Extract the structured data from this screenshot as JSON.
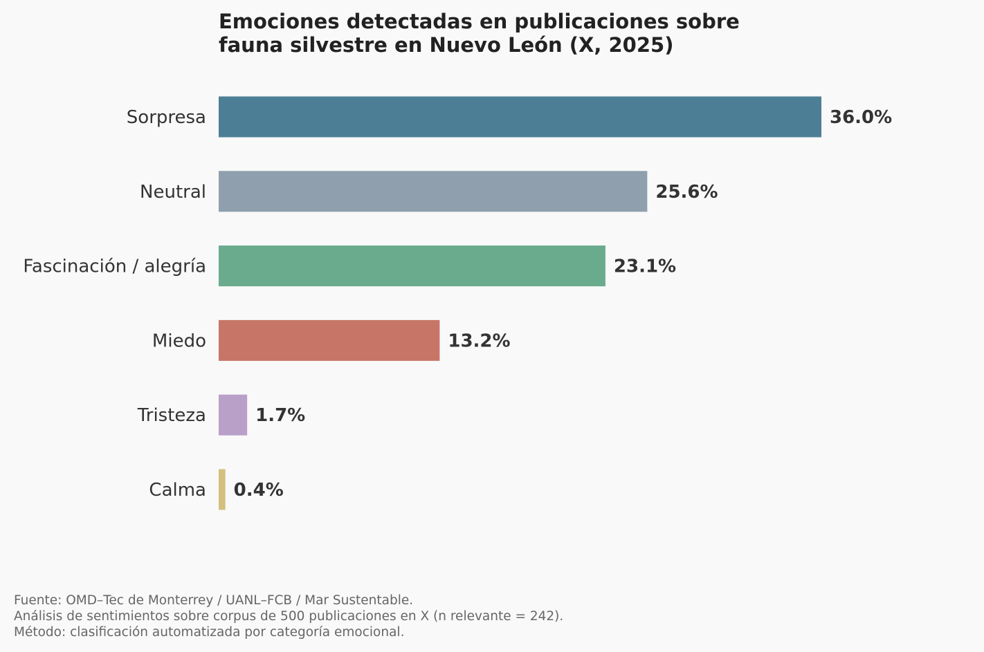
{
  "chart_data": {
    "type": "bar",
    "orientation": "horizontal",
    "title": "Emociones detectadas en publicaciones sobre\nfauna silvestre en Nuevo León (X, 2025)",
    "xlabel": "",
    "ylabel": "",
    "categories": [
      "Sorpresa",
      "Neutral",
      "Fascinación / alegría",
      "Miedo",
      "Tristeza",
      "Calma"
    ],
    "values": [
      36.0,
      25.6,
      23.1,
      13.2,
      1.7,
      0.4
    ],
    "value_labels": [
      "36.0%",
      "25.6%",
      "23.1%",
      "13.2%",
      "1.7%",
      "0.4%"
    ],
    "colors": [
      "#4c7f96",
      "#8f9fae",
      "#6aab8e",
      "#c67566",
      "#b9a0c9",
      "#d4c07e"
    ],
    "xlim": [
      0,
      40
    ],
    "grid": false,
    "legend": "none"
  },
  "footnote": {
    "lines": [
      "Fuente: OMD–Tec de Monterrey / UANL–FCB / Mar Sustentable.",
      "Análisis de sentimientos sobre corpus de 500 publicaciones en X (n relevante = 242).",
      "Método: clasificación automatizada por categoría emocional."
    ]
  }
}
